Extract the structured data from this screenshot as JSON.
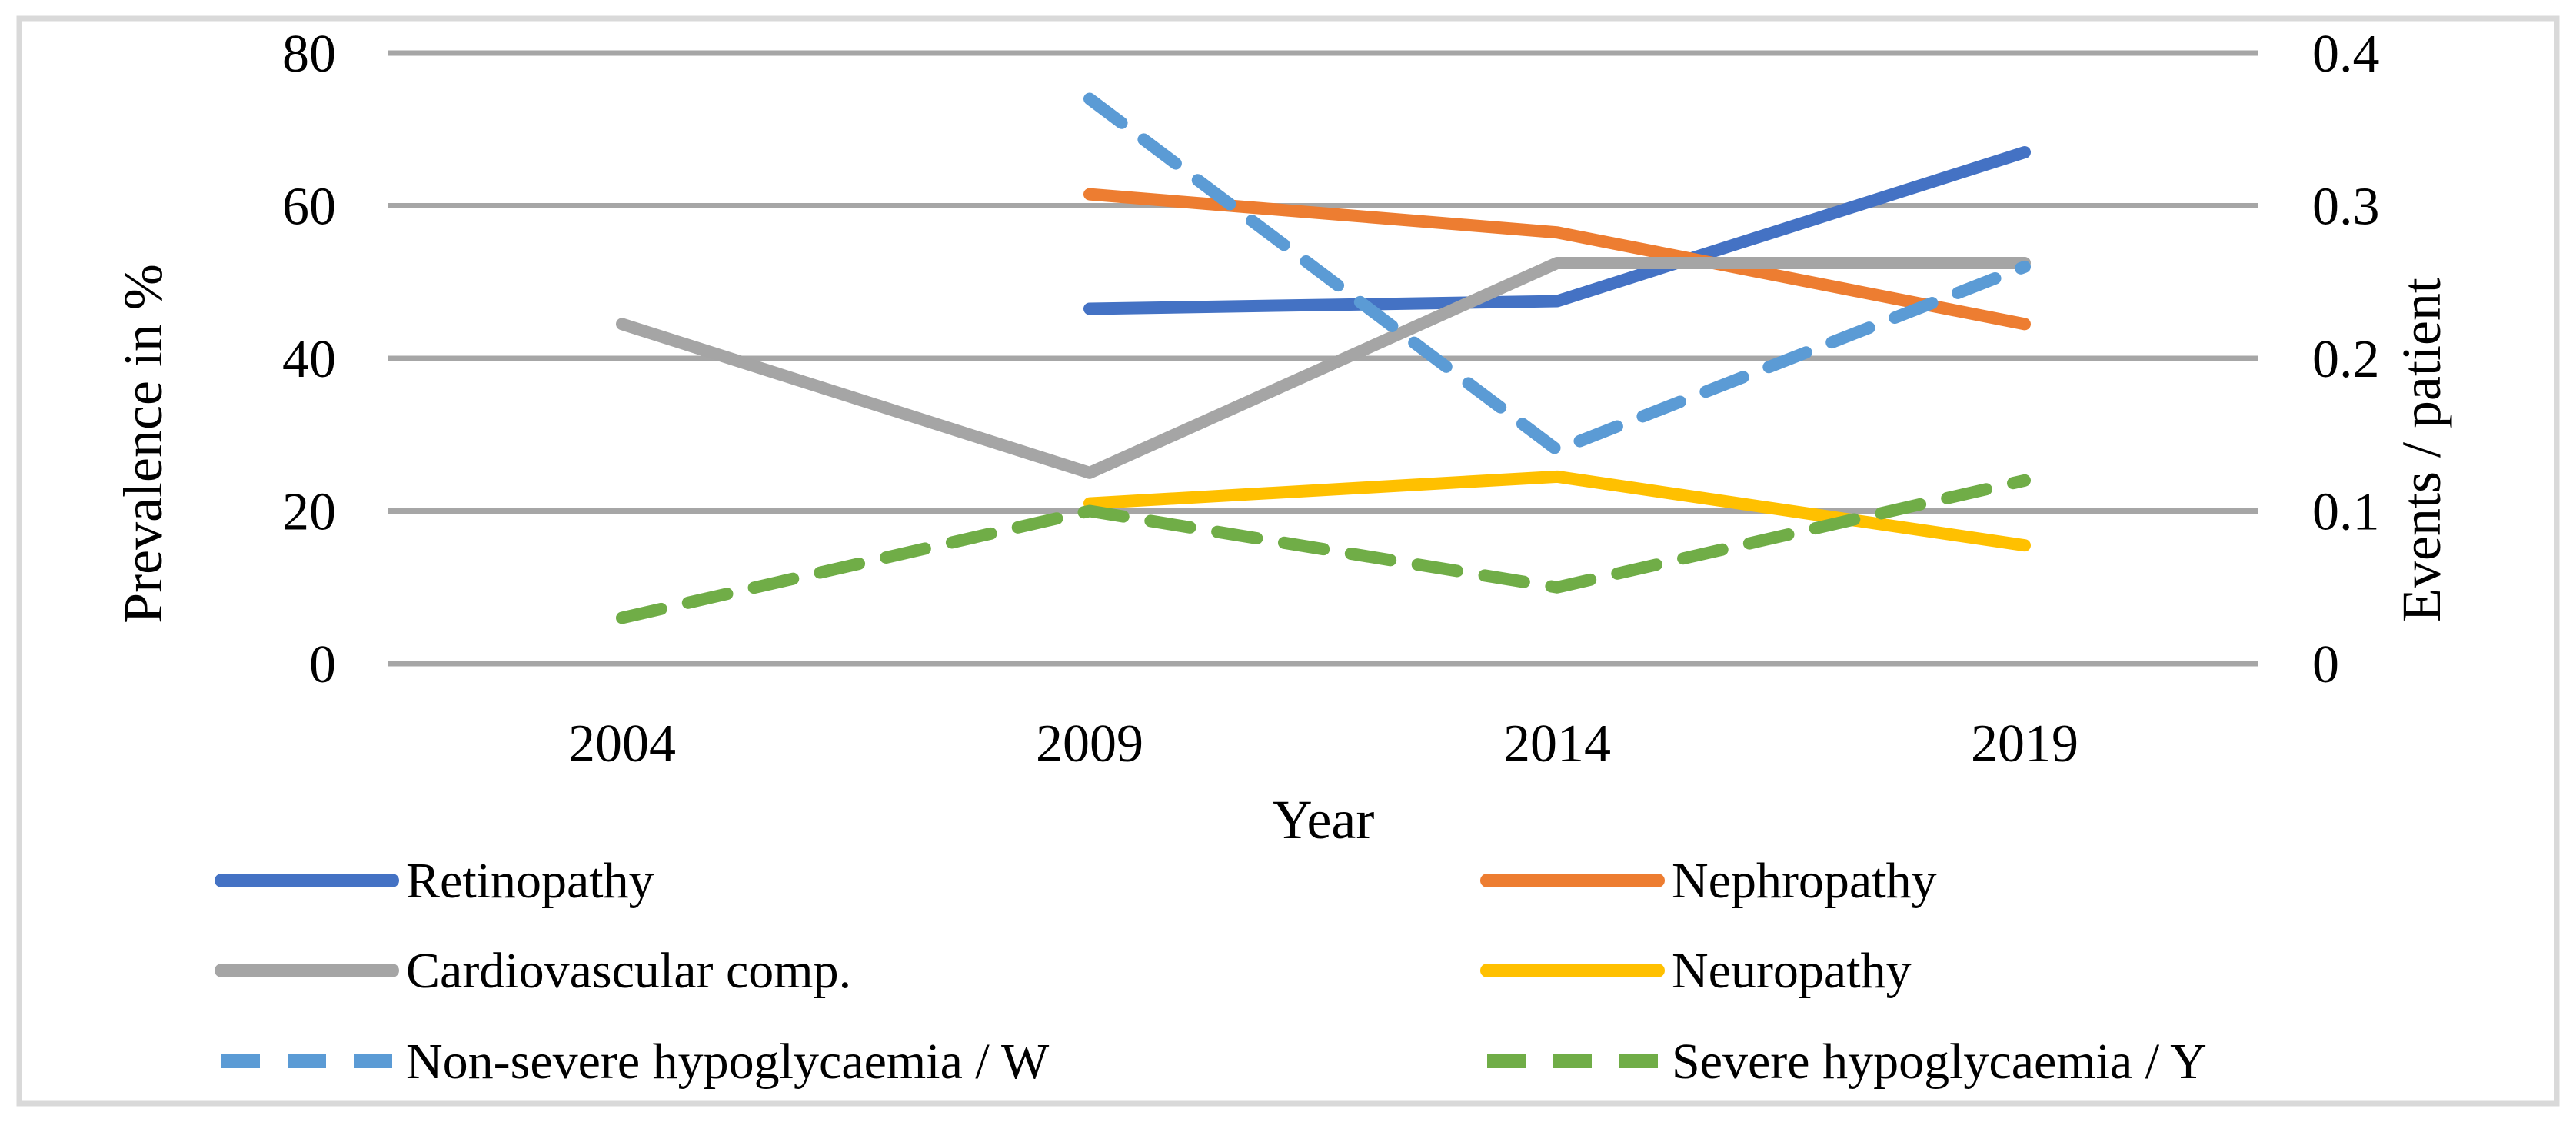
{
  "figure": {
    "background_color": "#ffffff",
    "border_color": "#d9d9d9"
  },
  "chart_data": {
    "type": "line",
    "categories": [
      "2004",
      "2009",
      "2014",
      "2019"
    ],
    "x_axis": {
      "title": "Year",
      "tick_labels": [
        "2004",
        "2009",
        "2014",
        "2019"
      ]
    },
    "left_axis": {
      "title": "Prevalence in %",
      "min": 0,
      "max": 80,
      "ticks": [
        0,
        20,
        40,
        60,
        80
      ],
      "tick_labels": [
        "0",
        "20",
        "40",
        "60",
        "80"
      ]
    },
    "right_axis": {
      "title": "Events / patient",
      "min": 0,
      "max": 0.4,
      "ticks": [
        0,
        0.1,
        0.2,
        0.3,
        0.4
      ],
      "tick_labels": [
        "0",
        "0.1",
        "0.2",
        "0.3",
        "0.4"
      ]
    },
    "grid": true,
    "gridline_color": "#a6a6a6",
    "legend_position": "bottom-two-columns",
    "series": [
      {
        "name": "Retinopathy",
        "axis": "left",
        "color": "#4472c4",
        "dash": false,
        "values": [
          null,
          46.5,
          47.5,
          67
        ]
      },
      {
        "name": "Nephropathy",
        "axis": "left",
        "color": "#ed7d31",
        "dash": false,
        "values": [
          null,
          61.5,
          56.5,
          44.5
        ]
      },
      {
        "name": "Cardiovascular comp.",
        "axis": "left",
        "color": "#a5a5a5",
        "dash": false,
        "values": [
          44.5,
          25,
          52.5,
          52.5
        ]
      },
      {
        "name": "Neuropathy",
        "axis": "left",
        "color": "#ffc000",
        "dash": false,
        "values": [
          null,
          21,
          24.5,
          15.5
        ]
      },
      {
        "name": "Non-severe hypoglycaemia / W",
        "axis": "right",
        "color": "#5b9bd5",
        "dash": true,
        "values": [
          null,
          0.37,
          0.14,
          0.26
        ]
      },
      {
        "name": "Severe hypoglycaemia / Y",
        "axis": "right",
        "color": "#70ad47",
        "dash": true,
        "values": [
          0.03,
          0.1,
          0.05,
          0.12
        ]
      }
    ],
    "legend": {
      "columns": [
        [
          "Retinopathy",
          "Cardiovascular comp.",
          "Non-severe hypoglycaemia / W"
        ],
        [
          "Nephropathy",
          "Neuropathy",
          "Severe hypoglycaemia / Y"
        ]
      ]
    }
  }
}
